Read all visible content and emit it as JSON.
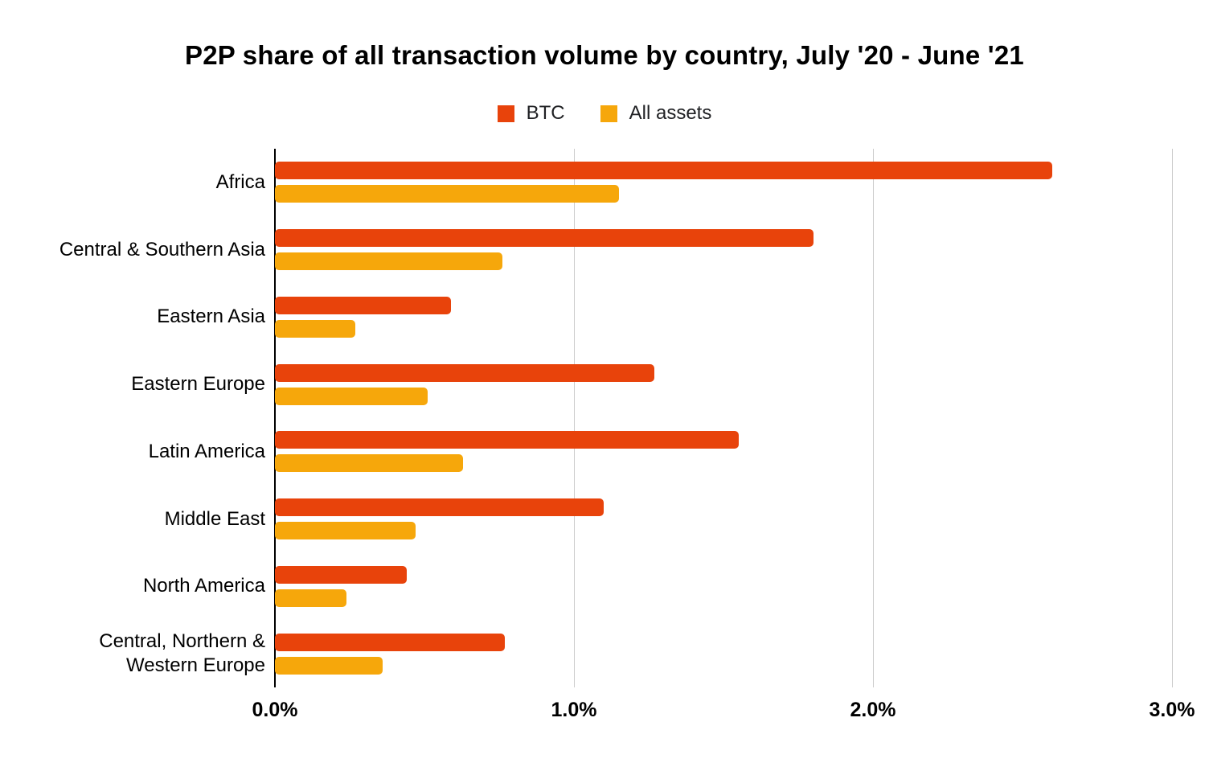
{
  "title": "P2P share of all transaction volume by country, July '20 - June '21",
  "legend": [
    {
      "label": "BTC",
      "color": "#e8430b"
    },
    {
      "label": "All assets",
      "color": "#f6a70b"
    }
  ],
  "chart_data": {
    "type": "bar",
    "orientation": "horizontal",
    "title": "P2P share of all transaction volume by country, July '20 - June '21",
    "xlabel": "",
    "ylabel": "",
    "xlim": [
      0,
      3.0
    ],
    "x_ticks": [
      "0.0%",
      "1.0%",
      "2.0%",
      "3.0%"
    ],
    "grid": true,
    "legend_position": "top",
    "categories": [
      "Africa",
      "Central & Southern Asia",
      "Eastern Asia",
      "Eastern Europe",
      "Latin America",
      "Middle East",
      "North America",
      "Central, Northern & Western Europe"
    ],
    "series": [
      {
        "name": "BTC",
        "color": "#e8430b",
        "values": [
          2.6,
          1.8,
          0.59,
          1.27,
          1.55,
          1.1,
          0.44,
          0.77
        ]
      },
      {
        "name": "All assets",
        "color": "#f6a70b",
        "values": [
          1.15,
          0.76,
          0.27,
          0.51,
          0.63,
          0.47,
          0.24,
          0.36
        ]
      }
    ]
  }
}
